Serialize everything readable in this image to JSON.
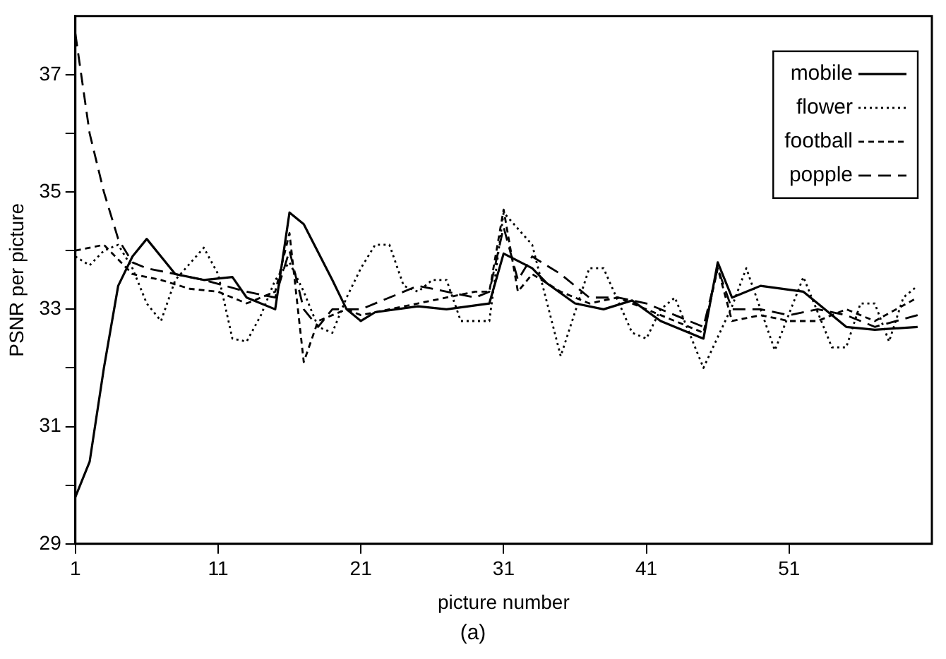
{
  "chart_data": {
    "type": "line",
    "xlabel": "picture number",
    "ylabel": "PSNR per picture",
    "annotations": [
      "(a)"
    ],
    "xlim": [
      1,
      61
    ],
    "xticks": [
      1,
      11,
      21,
      31,
      41,
      51
    ],
    "ylim": [
      29,
      38
    ],
    "yticks": [
      29,
      {
        "value": 30,
        "label": null
      },
      31,
      {
        "value": 32,
        "label": null
      },
      33,
      {
        "value": 34,
        "label": null
      },
      35,
      {
        "value": 36,
        "label": null
      },
      37
    ],
    "grid": false,
    "legend": "top right",
    "marker": "none",
    "series": [
      {
        "name": "mobile",
        "color": "#000000",
        "line_style": "solid",
        "x": [
          1,
          2,
          3,
          4,
          5,
          6,
          8,
          10,
          12,
          13,
          15,
          16,
          17,
          19,
          20,
          21,
          22,
          25,
          27,
          30,
          31,
          33,
          34,
          36,
          38,
          40,
          42,
          45,
          46,
          47,
          49,
          52,
          53,
          55,
          57,
          60
        ],
        "values": [
          29.8,
          30.4,
          32.0,
          33.4,
          33.9,
          34.2,
          33.6,
          33.5,
          33.55,
          33.2,
          33.0,
          34.65,
          34.45,
          33.5,
          33.0,
          32.8,
          32.95,
          33.05,
          33.0,
          33.1,
          33.95,
          33.7,
          33.45,
          33.1,
          33.0,
          33.15,
          32.8,
          32.5,
          33.8,
          33.2,
          33.4,
          33.3,
          33.1,
          32.7,
          32.65,
          32.7
        ]
      },
      {
        "name": "flower",
        "color": "#000000",
        "line_style": "dotted",
        "x": [
          1,
          2,
          3,
          4,
          5,
          6,
          7,
          8,
          10,
          11,
          12,
          13,
          14,
          15,
          16,
          17,
          18,
          19,
          20,
          21,
          22,
          23,
          24,
          25,
          26,
          27,
          28,
          29,
          30,
          31,
          33,
          35,
          37,
          38,
          40,
          41,
          42,
          43,
          45,
          47,
          48,
          50,
          52,
          54,
          55,
          56,
          57,
          58,
          59,
          60
        ],
        "values": [
          33.9,
          33.75,
          34.0,
          34.1,
          33.7,
          33.1,
          32.8,
          33.5,
          34.05,
          33.6,
          32.5,
          32.45,
          32.9,
          33.5,
          33.8,
          33.3,
          32.7,
          32.6,
          33.2,
          33.7,
          34.1,
          34.1,
          33.4,
          33.3,
          33.5,
          33.5,
          32.8,
          32.8,
          32.8,
          34.65,
          34.1,
          32.2,
          33.7,
          33.7,
          32.6,
          32.5,
          33.0,
          33.2,
          32.0,
          33.05,
          33.7,
          32.3,
          33.55,
          32.35,
          32.35,
          33.1,
          33.1,
          32.45,
          33.2,
          33.4
        ]
      },
      {
        "name": "football",
        "color": "#000000",
        "line_style": "dashed",
        "x": [
          1,
          3,
          5,
          7,
          9,
          11,
          13,
          15,
          16,
          17,
          18,
          19,
          20,
          21,
          23,
          25,
          27,
          29,
          30,
          31,
          32,
          33,
          35,
          37,
          39,
          41,
          43,
          45,
          46,
          47,
          49,
          51,
          53,
          55,
          57,
          60
        ],
        "values": [
          34.0,
          34.1,
          33.6,
          33.5,
          33.35,
          33.3,
          33.1,
          33.3,
          34.3,
          32.1,
          32.8,
          32.9,
          33.0,
          32.9,
          33.0,
          33.1,
          33.2,
          33.3,
          33.3,
          34.7,
          33.3,
          33.6,
          33.3,
          33.1,
          33.2,
          33.0,
          32.8,
          32.6,
          33.7,
          32.8,
          32.9,
          32.8,
          32.8,
          33.0,
          32.8,
          33.2
        ]
      },
      {
        "name": "popple",
        "color": "#000000",
        "line_style": "longdash",
        "x": [
          1,
          2,
          3,
          4,
          5,
          6,
          8,
          10,
          13,
          15,
          16,
          17,
          18,
          19,
          21,
          23,
          25,
          27,
          29,
          30,
          31,
          32,
          33,
          35,
          37,
          39,
          41,
          43,
          45,
          46,
          47,
          49,
          51,
          53,
          55,
          57,
          60
        ],
        "values": [
          37.7,
          36.0,
          35.0,
          34.2,
          33.8,
          33.7,
          33.6,
          33.5,
          33.3,
          33.2,
          34.0,
          33.0,
          32.7,
          33.0,
          33.0,
          33.2,
          33.4,
          33.3,
          33.2,
          33.3,
          34.4,
          33.5,
          33.9,
          33.6,
          33.2,
          33.2,
          33.1,
          32.9,
          32.7,
          33.7,
          33.0,
          33.0,
          32.9,
          33.0,
          32.9,
          32.7,
          32.9
        ]
      }
    ]
  }
}
